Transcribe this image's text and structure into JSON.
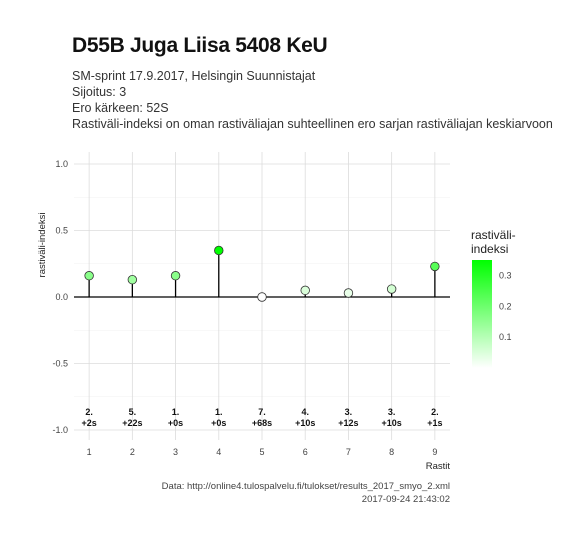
{
  "header": {
    "title": "D55B Juga Liisa 5408 KeU",
    "subtitle_lines": [
      "SM-sprint 17.9.2017, Helsingin Suunnistajat",
      "Sijoitus: 3",
      "Ero kärkeen: 52S",
      "Rastiväli-indeksi on oman rastiväliajan suhteellinen ero sarjan rastiväliajan keskiarvoon"
    ]
  },
  "caption": {
    "source": "Data: http://online4.tulospalvelu.fi/tulokset/results_2017_smyo_2.xml",
    "timestamp": "2017-09-24 21:43:02"
  },
  "chart_data": {
    "type": "scatter",
    "style": "lollipop",
    "x": [
      1,
      2,
      3,
      4,
      5,
      6,
      7,
      8,
      9
    ],
    "y": [
      0.16,
      0.13,
      0.16,
      0.35,
      0.0,
      0.05,
      0.03,
      0.06,
      0.23
    ],
    "xlabel": "Rastit",
    "ylabel": "rastiväli-indeksi",
    "ylim": [
      -1.0,
      1.0
    ],
    "yticks": [
      1.0,
      0.5,
      0.0,
      -0.5,
      -1.0
    ],
    "ytick_labels": [
      "1.0",
      "0.5",
      "0.0",
      "-0.5",
      "-1.0"
    ],
    "xticks": [
      "1",
      "2",
      "3",
      "4",
      "5",
      "6",
      "7",
      "8",
      "9"
    ],
    "bottom_labels": [
      {
        "rank": "2.",
        "diff": "+2s"
      },
      {
        "rank": "5.",
        "diff": "+22s"
      },
      {
        "rank": "1.",
        "diff": "+0s"
      },
      {
        "rank": "1.",
        "diff": "+0s"
      },
      {
        "rank": "7.",
        "diff": "+68s"
      },
      {
        "rank": "4.",
        "diff": "+10s"
      },
      {
        "rank": "3.",
        "diff": "+12s"
      },
      {
        "rank": "3.",
        "diff": "+10s"
      },
      {
        "rank": "2.",
        "diff": "+1s"
      }
    ],
    "grid": true,
    "legend": {
      "title_lines": [
        "rastiväli-",
        "indeksi"
      ],
      "ticks": [
        0.3,
        0.2,
        0.1
      ],
      "tick_labels": [
        "0.3",
        "0.2",
        "0.1"
      ],
      "range": [
        0.0,
        0.35
      ],
      "color_low": "#ffffff",
      "color_high": "#00ff00",
      "placement": "right"
    }
  }
}
